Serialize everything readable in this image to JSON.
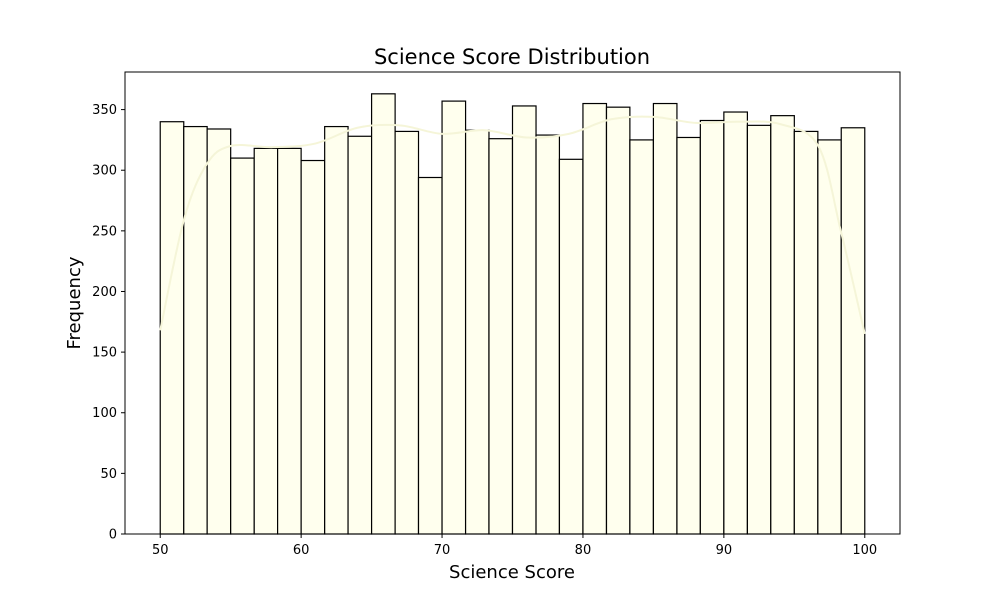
{
  "chart_data": {
    "type": "bar",
    "title": "Science Score Distribution",
    "xlabel": "Science Score",
    "ylabel": "Frequency",
    "xlim": [
      47.5,
      102.5
    ],
    "ylim": [
      0,
      381
    ],
    "xticks": [
      50,
      60,
      70,
      80,
      90,
      100
    ],
    "yticks": [
      0,
      50,
      100,
      150,
      200,
      250,
      300,
      350
    ],
    "grid": false,
    "legend": "none",
    "bin_edges": [
      50,
      51.67,
      53.33,
      55,
      56.67,
      58.33,
      60,
      61.67,
      63.33,
      65,
      66.67,
      68.33,
      70,
      71.67,
      73.33,
      75,
      76.67,
      78.33,
      80,
      81.67,
      83.33,
      85,
      86.67,
      88.33,
      90,
      91.67,
      93.33,
      95,
      96.67,
      98.33,
      100
    ],
    "values": [
      340,
      336,
      334,
      310,
      318,
      318,
      308,
      336,
      328,
      363,
      332,
      294,
      357,
      333,
      326,
      353,
      329,
      309,
      355,
      352,
      325,
      355,
      327,
      341,
      348,
      337,
      345,
      332,
      325,
      335
    ],
    "kde": {
      "x": [
        50,
        51.7,
        53.3,
        55,
        58,
        61,
        64,
        67,
        70,
        73,
        76,
        79,
        82,
        85,
        88,
        91,
        94,
        96.7,
        98.3,
        100
      ],
      "y": [
        168,
        260,
        305,
        320,
        319,
        322,
        335,
        337,
        330,
        333,
        327,
        330,
        342,
        344,
        339,
        340,
        338,
        320,
        250,
        165
      ]
    },
    "bar_fill": "#FFFFEE",
    "bar_edge": "#000000",
    "kde_color": "#F5F5D8"
  }
}
